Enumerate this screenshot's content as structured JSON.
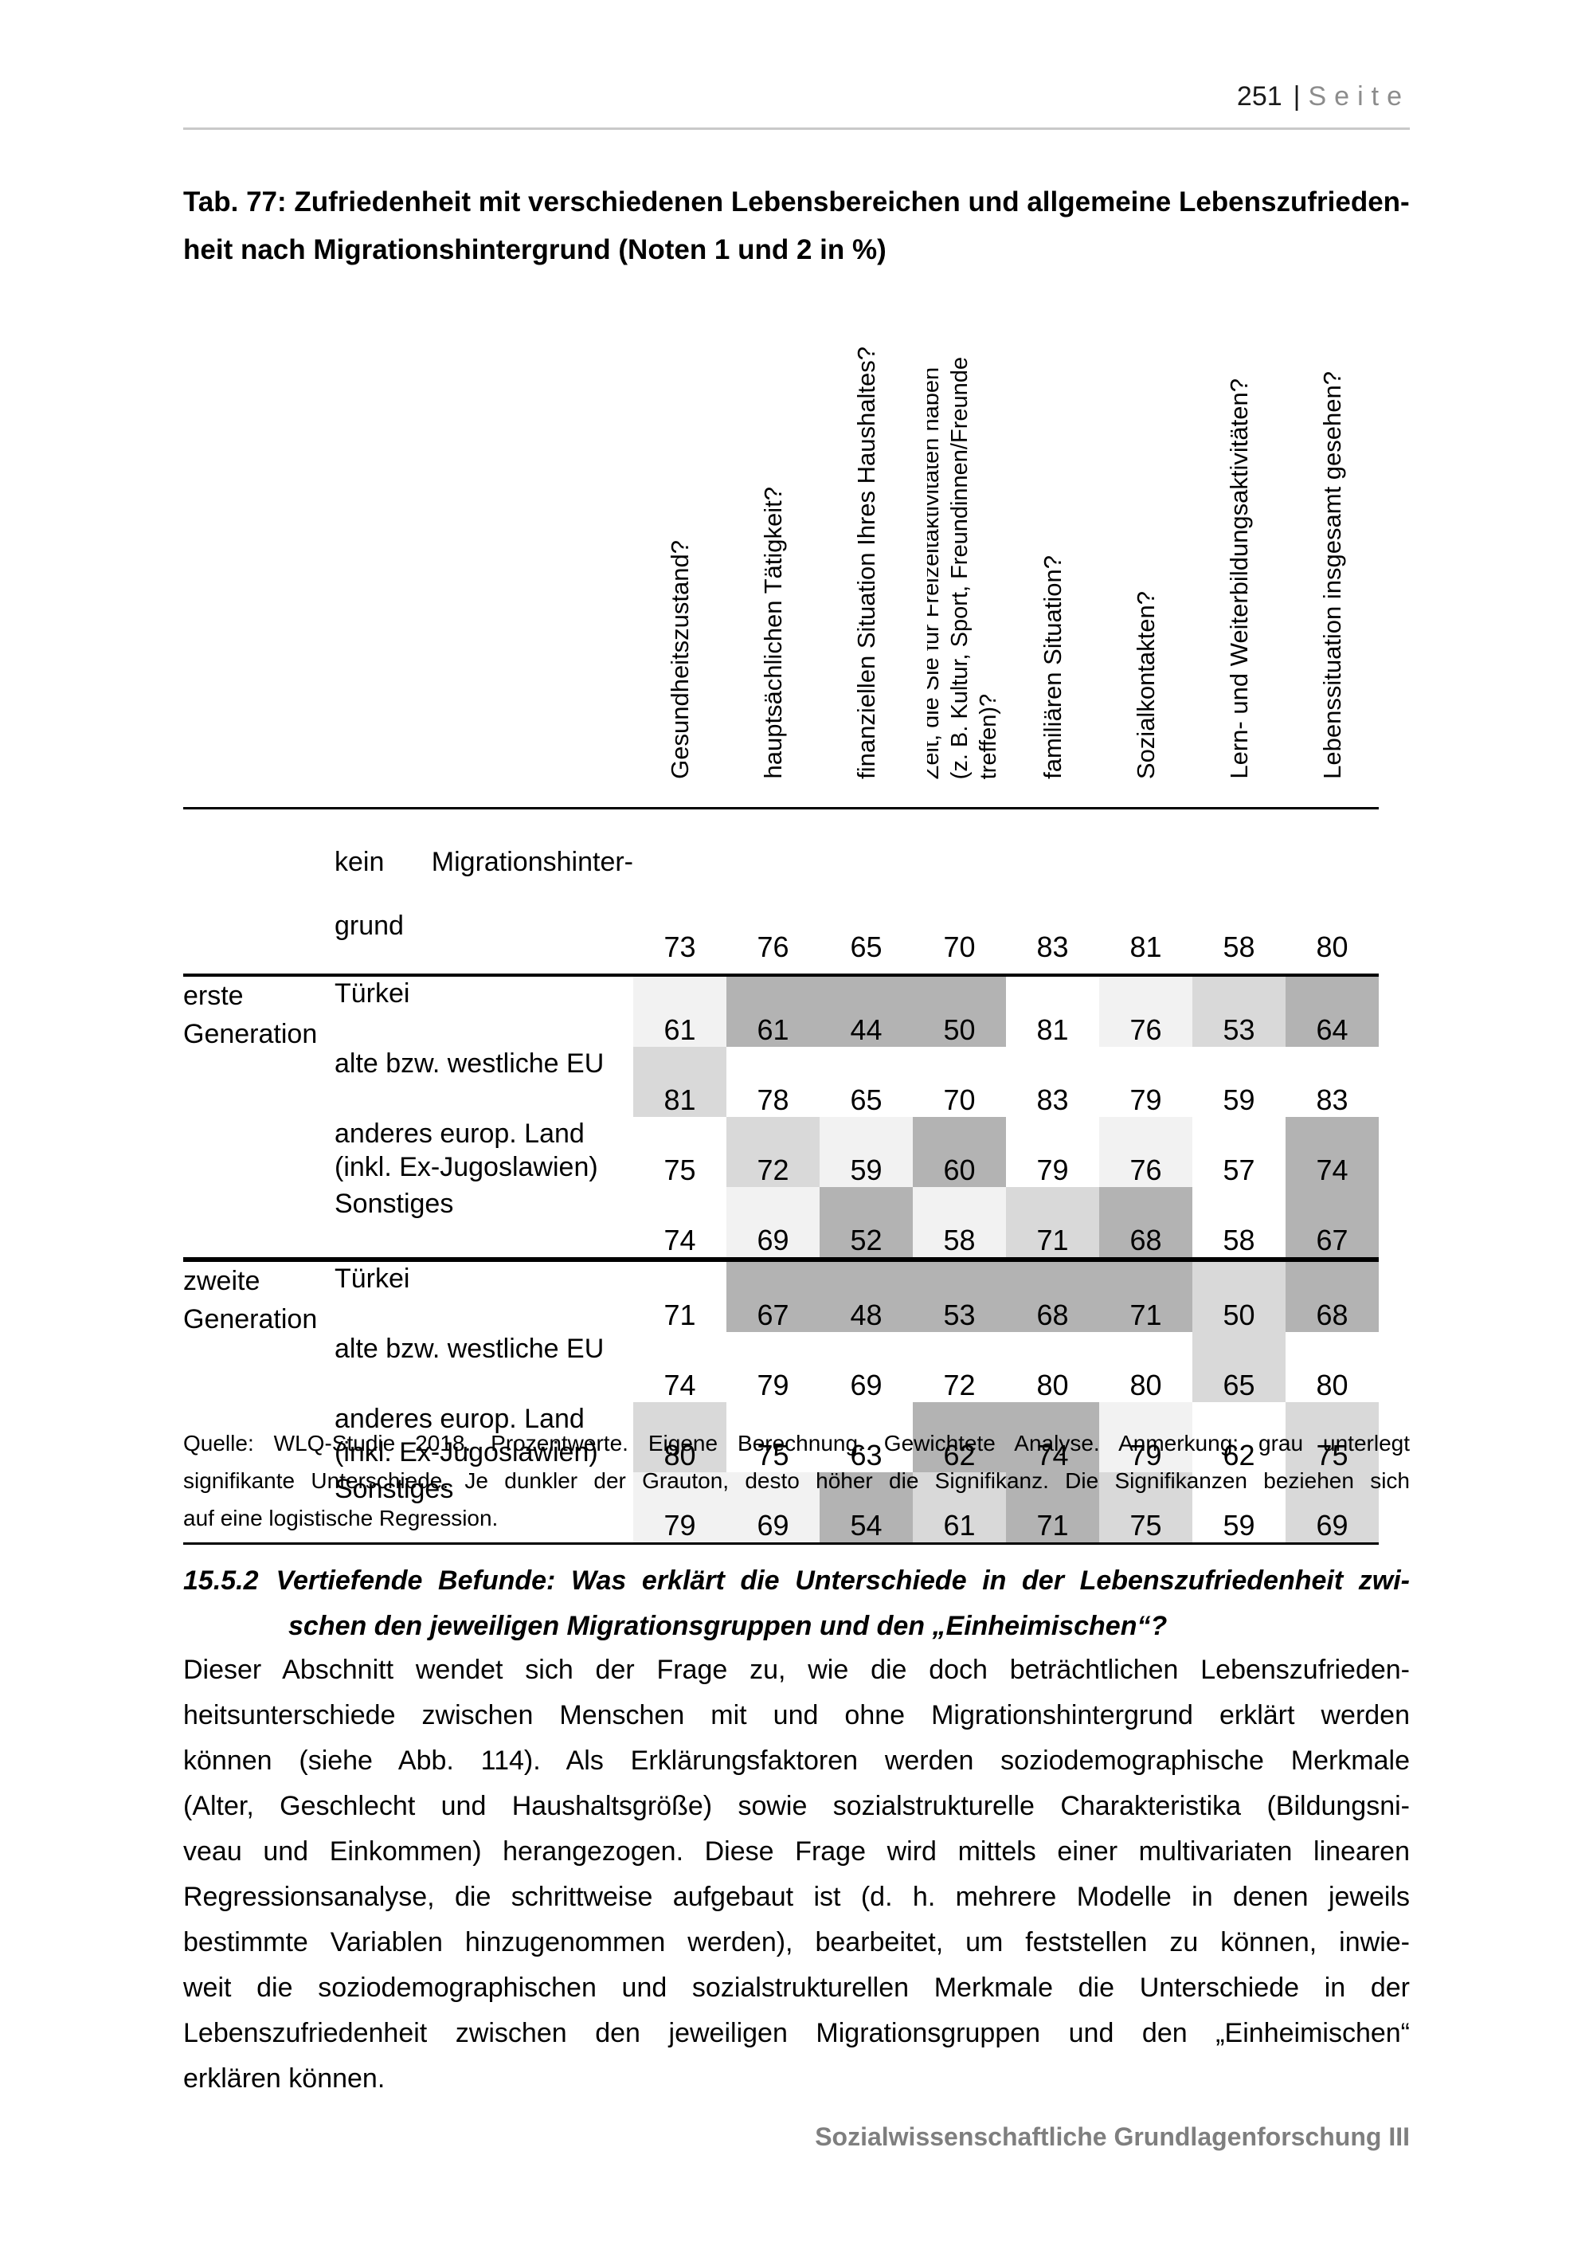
{
  "page": {
    "number": "251",
    "separator": "|",
    "page_word": "Seite",
    "footer": "Sozialwissenschaftliche Grundlagenforschung III"
  },
  "table": {
    "title_lines": [
      "Tab. 77: Zufriedenheit mit verschiedenen Lebensbereichen und allgemeine Lebenszufrieden-",
      "heit nach Migrationshintergrund (Noten 1 und 2 in %)"
    ],
    "shade_colors": [
      "#ffffff",
      "#f2f2f2",
      "#d9d9d9",
      "#b3b3b3"
    ],
    "column_headers": [
      "Gesundheitszustand?",
      "hauptsächlichen Tätigkeit?",
      "finanziellen Situation Ihres Haushaltes?",
      "Zeit, die Sie für Freizeitaktivitäten haben\n(z. B. Kultur, Sport, Freundinnen/Freunde\ntreffen)?",
      "familiären Situation?",
      "Sozialkontakten?",
      "Lern- und Weiterbildungsaktivitäten?",
      "Lebenssituation insgesamt gesehen?"
    ],
    "groups": [
      {
        "name": "erste\nGeneration"
      },
      {
        "name": "zweite\nGeneration"
      }
    ],
    "rows": [
      {
        "label_line1": "kein Migrationshinter-",
        "label_line2": "grund",
        "values": [
          73,
          76,
          65,
          70,
          83,
          81,
          58,
          80
        ],
        "shades": [
          0,
          0,
          0,
          0,
          0,
          0,
          0,
          0
        ]
      },
      {
        "label": "Türkei",
        "values": [
          61,
          61,
          44,
          50,
          81,
          76,
          53,
          64
        ],
        "shades": [
          1,
          3,
          3,
          3,
          0,
          1,
          2,
          3
        ]
      },
      {
        "label": "alte bzw. westliche EU",
        "values": [
          81,
          78,
          65,
          70,
          83,
          79,
          59,
          83
        ],
        "shades": [
          2,
          0,
          0,
          0,
          0,
          0,
          0,
          0
        ]
      },
      {
        "label": "anderes europ. Land\n(inkl. Ex-Jugoslawien)",
        "values": [
          75,
          72,
          59,
          60,
          79,
          76,
          57,
          74
        ],
        "shades": [
          0,
          2,
          1,
          3,
          0,
          1,
          0,
          3
        ]
      },
      {
        "label": "Sonstiges",
        "values": [
          74,
          69,
          52,
          58,
          71,
          68,
          58,
          67
        ],
        "shades": [
          0,
          1,
          3,
          1,
          2,
          3,
          0,
          3
        ]
      },
      {
        "label": "Türkei",
        "values": [
          71,
          67,
          48,
          53,
          68,
          71,
          50,
          68
        ],
        "shades": [
          0,
          3,
          3,
          3,
          3,
          3,
          2,
          3
        ]
      },
      {
        "label": "alte bzw. westliche EU",
        "values": [
          74,
          79,
          69,
          72,
          80,
          80,
          65,
          80
        ],
        "shades": [
          0,
          0,
          0,
          0,
          0,
          0,
          2,
          0
        ]
      },
      {
        "label": "anderes europ. Land\n(inkl. Ex-Jugoslawien)",
        "values": [
          80,
          75,
          63,
          62,
          74,
          79,
          62,
          75
        ],
        "shades": [
          2,
          0,
          0,
          3,
          3,
          1,
          0,
          2
        ]
      },
      {
        "label": "Sonstiges",
        "values": [
          79,
          69,
          54,
          61,
          71,
          75,
          59,
          69
        ],
        "shades": [
          1,
          1,
          3,
          2,
          3,
          2,
          0,
          2
        ]
      }
    ],
    "source_lines": [
      "Quelle: WLQ-Studie 2018. Prozentwerte. Eigene Berechnung. Gewichtete Analyse. Anmerkung: grau unterlegt",
      "signifikante Unterschiede. Je dunkler der Grauton, desto höher die Signifikanz. Die Signifikanzen beziehen sich",
      "auf eine logistische Regression."
    ]
  },
  "section": {
    "number": "15.5.2",
    "heading_lines": [
      "Vertiefende Befunde: Was erklärt die Unterschiede in der Lebenszufriedenheit zwi-",
      "schen den jeweiligen Migrationsgruppen und den „Einheimischen“?"
    ],
    "body_lines": [
      "Dieser Abschnitt wendet sich der Frage zu, wie die doch beträchtlichen Lebenszufrieden-",
      "heitsunterschiede zwischen Menschen mit und ohne Migrationshintergrund erklärt werden",
      "können (siehe Abb. 114). Als Erklärungsfaktoren werden soziodemographische Merkmale",
      "(Alter, Geschlecht und Haushaltsgröße) sowie sozialstrukturelle Charakteristika (Bildungsni-",
      "veau und Einkommen) herangezogen. Diese Frage wird mittels einer multivariaten linearen",
      "Regressionsanalyse, die schrittweise aufgebaut ist (d. h. mehrere Modelle in denen jeweils",
      "bestimmte Variablen hinzugenommen werden), bearbeitet, um feststellen zu können, inwie-",
      "weit die soziodemographischen und sozialstrukturellen Merkmale die Unterschiede in der",
      "Lebenszufriedenheit zwischen den jeweiligen Migrationsgruppen und den „Einheimischen“",
      "erklären können."
    ]
  }
}
